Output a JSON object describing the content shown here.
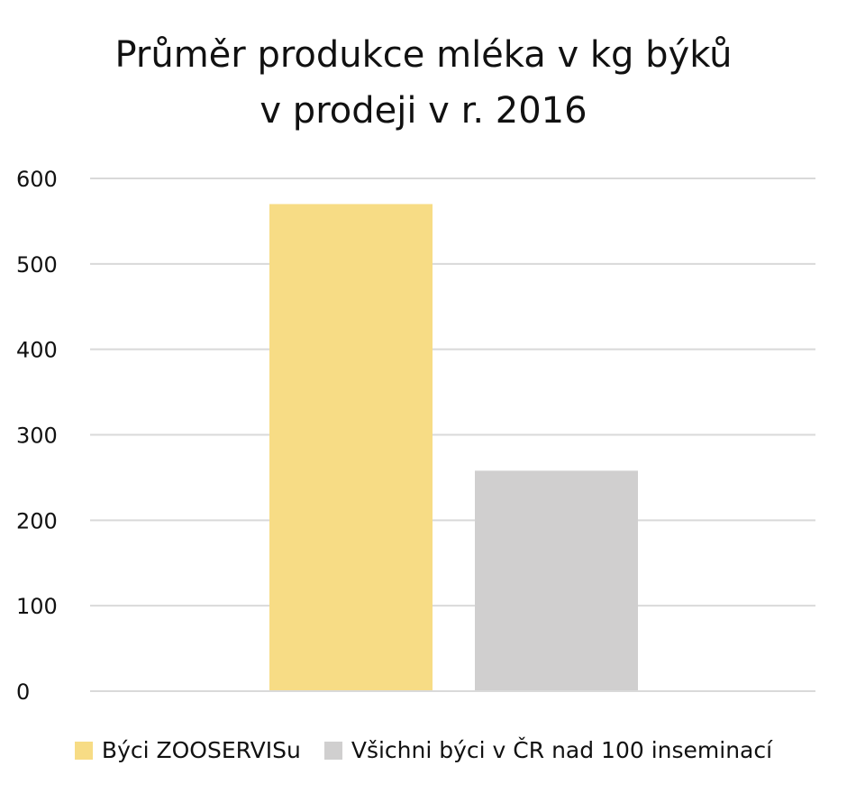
{
  "chart_data": {
    "type": "bar",
    "title_lines": [
      "Průměr produkce mléka v kg býků",
      "v prodeji v r. 2016"
    ],
    "xlabel": "",
    "ylabel": "",
    "ylim": [
      0,
      600
    ],
    "yticks": [
      "0",
      "100",
      "200",
      "300",
      "400",
      "500",
      "600"
    ],
    "grid": true,
    "legend_position": "bottom",
    "series": [
      {
        "name": "Býci ZOOSERVISu",
        "value": 570,
        "color": "#f7dc85"
      },
      {
        "name": "Všichni býci v ČR nad 100 inseminací",
        "value": 258,
        "color": "#d0cfcf"
      }
    ]
  }
}
